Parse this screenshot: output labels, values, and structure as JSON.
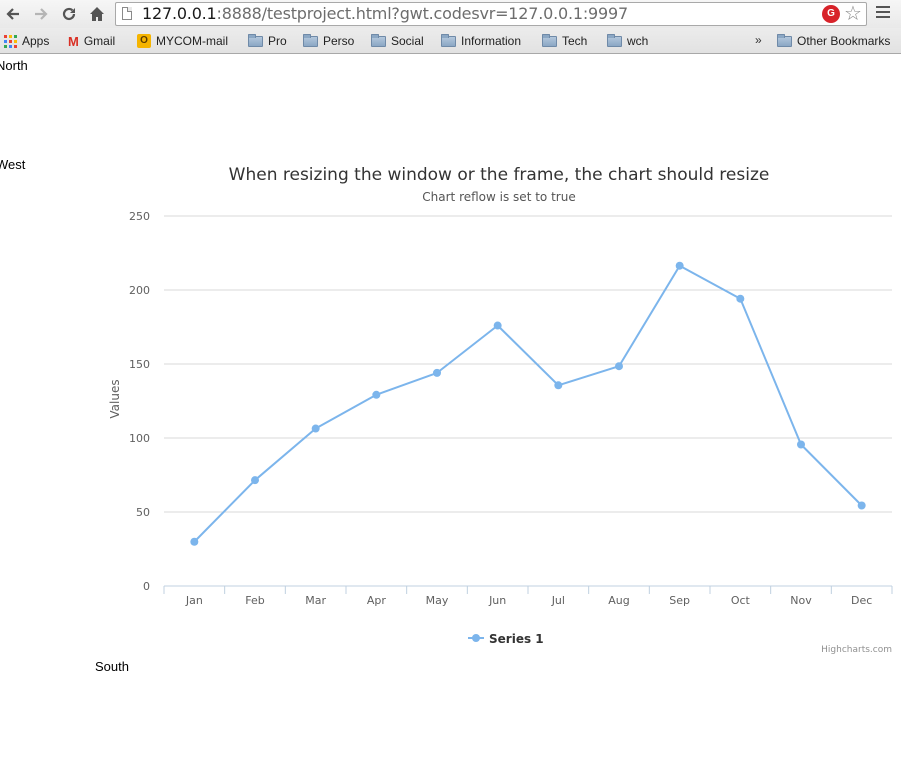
{
  "browser": {
    "url_host": "127.0.0.1",
    "url_rest": ":8888/testproject.html?gwt.codesvr=127.0.0.1:9997",
    "back_icon": "arrow-left-icon",
    "forward_icon": "arrow-right-icon",
    "reload_icon": "reload-icon",
    "home_icon": "home-icon",
    "extension_icon": "extension-icon",
    "bookmark_star_icon": "star-icon",
    "menu_icon": "hamburger-menu-icon"
  },
  "bookmarks": {
    "items": [
      {
        "label": "Apps",
        "icon": "apps-grid-icon"
      },
      {
        "label": "Gmail",
        "icon": "gmail-icon"
      },
      {
        "label": "MYCOM-mail",
        "icon": "mycom-icon"
      },
      {
        "label": "Pro",
        "icon": "folder-icon"
      },
      {
        "label": "Perso",
        "icon": "folder-icon"
      },
      {
        "label": "Social",
        "icon": "folder-icon"
      },
      {
        "label": "Information",
        "icon": "folder-icon"
      },
      {
        "label": "Tech",
        "icon": "folder-icon"
      },
      {
        "label": "wch",
        "icon": "folder-icon"
      }
    ],
    "overflow_label": "»",
    "other_label": "Other Bookmarks"
  },
  "regions": {
    "north": "North",
    "west": "West",
    "south": "South"
  },
  "chart_data": {
    "type": "line",
    "title": "When resizing the window or the frame, the chart should resize",
    "subtitle": "Chart reflow is set to true",
    "ylabel": "Values",
    "xlabel": "",
    "categories": [
      "Jan",
      "Feb",
      "Mar",
      "Apr",
      "May",
      "Jun",
      "Jul",
      "Aug",
      "Sep",
      "Oct",
      "Nov",
      "Dec"
    ],
    "series": [
      {
        "name": "Series 1",
        "values": [
          29.9,
          71.5,
          106.4,
          129.2,
          144.0,
          176.0,
          135.6,
          148.5,
          216.4,
          194.1,
          95.6,
          54.4
        ],
        "color": "#7cb5ec"
      }
    ],
    "ylim": [
      0,
      250
    ],
    "yticks": [
      0,
      50,
      100,
      150,
      200,
      250
    ],
    "grid": true,
    "legend": "bottom-center",
    "credits": "Highcharts.com"
  }
}
